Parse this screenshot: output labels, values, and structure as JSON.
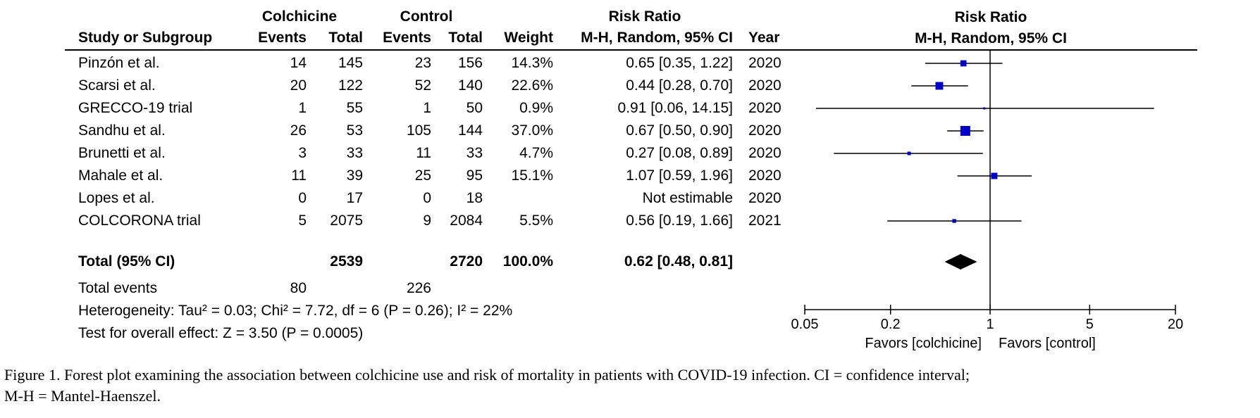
{
  "header": {
    "group1": "Colchicine",
    "group2": "Control",
    "ratio_top": "Risk Ratio",
    "plot_top": "Risk Ratio",
    "study_col": "Study or Subgroup",
    "events1": "Events",
    "total1": "Total",
    "events2": "Events",
    "total2": "Total",
    "weight": "Weight",
    "method": "M-H, Random, 95% CI",
    "year": "Year",
    "plot_method": "M-H, Random, 95% CI"
  },
  "studies": [
    {
      "name": "Pinzón et al.",
      "e1": "14",
      "n1": "145",
      "e2": "23",
      "n2": "156",
      "weight": "14.3%",
      "ci": "0.65 [0.35, 1.22]",
      "year": "2020"
    },
    {
      "name": "Scarsi et al.",
      "e1": "20",
      "n1": "122",
      "e2": "52",
      "n2": "140",
      "weight": "22.6%",
      "ci": "0.44 [0.28, 0.70]",
      "year": "2020"
    },
    {
      "name": "GRECCO-19 trial",
      "e1": "1",
      "n1": "55",
      "e2": "1",
      "n2": "50",
      "weight": "0.9%",
      "ci": "0.91 [0.06, 14.15]",
      "year": "2020"
    },
    {
      "name": "Sandhu et al.",
      "e1": "26",
      "n1": "53",
      "e2": "105",
      "n2": "144",
      "weight": "37.0%",
      "ci": "0.67 [0.50, 0.90]",
      "year": "2020"
    },
    {
      "name": "Brunetti et al.",
      "e1": "3",
      "n1": "33",
      "e2": "11",
      "n2": "33",
      "weight": "4.7%",
      "ci": "0.27 [0.08, 0.89]",
      "year": "2020"
    },
    {
      "name": "Mahale et al.",
      "e1": "11",
      "n1": "39",
      "e2": "25",
      "n2": "95",
      "weight": "15.1%",
      "ci": "1.07 [0.59, 1.96]",
      "year": "2020"
    },
    {
      "name": "Lopes et al.",
      "e1": "0",
      "n1": "17",
      "e2": "0",
      "n2": "18",
      "weight": "",
      "ci": "Not estimable",
      "year": "2020"
    },
    {
      "name": "COLCORONA trial",
      "e1": "5",
      "n1": "2075",
      "e2": "9",
      "n2": "2084",
      "weight": "5.5%",
      "ci": "0.56 [0.19, 1.66]",
      "year": "2021"
    }
  ],
  "total": {
    "label": "Total (95% CI)",
    "n1": "2539",
    "n2": "2720",
    "weight": "100.0%",
    "ci": "0.62 [0.48, 0.81]"
  },
  "events": {
    "label": "Total events",
    "e1": "80",
    "e2": "226"
  },
  "heterogeneity": "Heterogeneity: Tau² = 0.03; Chi² = 7.72, df = 6 (P = 0.26); I² = 22%",
  "overall": "Test for overall effect: Z = 3.50 (P = 0.0005)",
  "chart_data": {
    "type": "forest",
    "x_scale": "log",
    "xlim": [
      0.05,
      20
    ],
    "reference_line": 1,
    "x_ticks": [
      {
        "value": 0.05,
        "label": "0.05"
      },
      {
        "value": 0.2,
        "label": "0.2"
      },
      {
        "value": 1,
        "label": "1"
      },
      {
        "value": 5,
        "label": "5"
      },
      {
        "value": 20,
        "label": "20"
      }
    ],
    "favors_left": "Favors [colchicine]",
    "favors_right": "Favors [control]",
    "marker_color": "#0000c8",
    "points": [
      {
        "rr": 0.65,
        "lo": 0.35,
        "hi": 1.22,
        "weight": 14.3
      },
      {
        "rr": 0.44,
        "lo": 0.28,
        "hi": 0.7,
        "weight": 22.6
      },
      {
        "rr": 0.91,
        "lo": 0.06,
        "hi": 14.15,
        "weight": 0.9
      },
      {
        "rr": 0.67,
        "lo": 0.5,
        "hi": 0.9,
        "weight": 37.0
      },
      {
        "rr": 0.27,
        "lo": 0.08,
        "hi": 0.89,
        "weight": 4.7
      },
      {
        "rr": 1.07,
        "lo": 0.59,
        "hi": 1.96,
        "weight": 15.1
      },
      null,
      {
        "rr": 0.56,
        "lo": 0.19,
        "hi": 1.66,
        "weight": 5.5
      }
    ],
    "pooled": {
      "rr": 0.62,
      "lo": 0.48,
      "hi": 0.81
    }
  },
  "caption": {
    "line1": "Figure 1.  Forest plot examining the association between colchicine use and risk of mortality in patients with COVID-19 infection. CI = confidence interval;",
    "line2": "M-H = Mantel-Haenszel."
  }
}
